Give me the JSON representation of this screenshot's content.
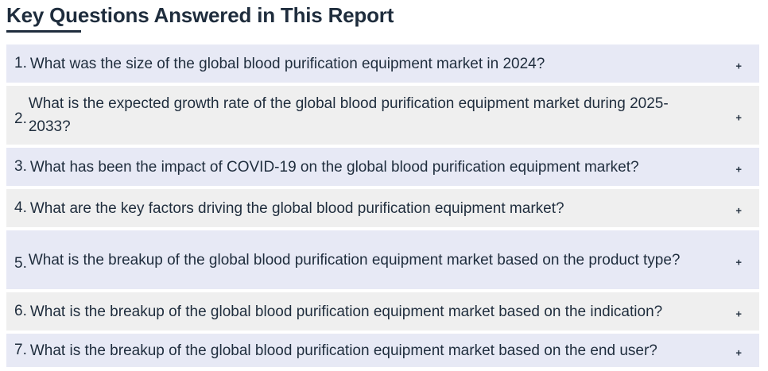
{
  "section": {
    "title": "Key Questions Answered in This Report"
  },
  "faq": {
    "expand_glyph": "+",
    "items": [
      {
        "number": "1.",
        "question": "What was the size of the global blood purification equipment market in 2024?"
      },
      {
        "number": "2.",
        "question": "What is the expected growth rate of the global blood purification equipment market during 2025-2033?"
      },
      {
        "number": "3.",
        "question": "What has been the impact of COVID-19 on the global blood purification equipment market?"
      },
      {
        "number": "4.",
        "question": "What are the key factors driving the global blood purification equipment market?"
      },
      {
        "number": "5.",
        "question": "What is the breakup of the global blood purification equipment market based on the product type?"
      },
      {
        "number": "6.",
        "question": "What is the breakup of the global blood purification equipment market based on the indication?"
      },
      {
        "number": "7.",
        "question": "What is the breakup of the global blood purification equipment market based on the end user?"
      }
    ]
  },
  "colors": {
    "row_primary": "#e7e9f5",
    "row_alternate": "#efefef",
    "text": "#1f2d3d"
  }
}
